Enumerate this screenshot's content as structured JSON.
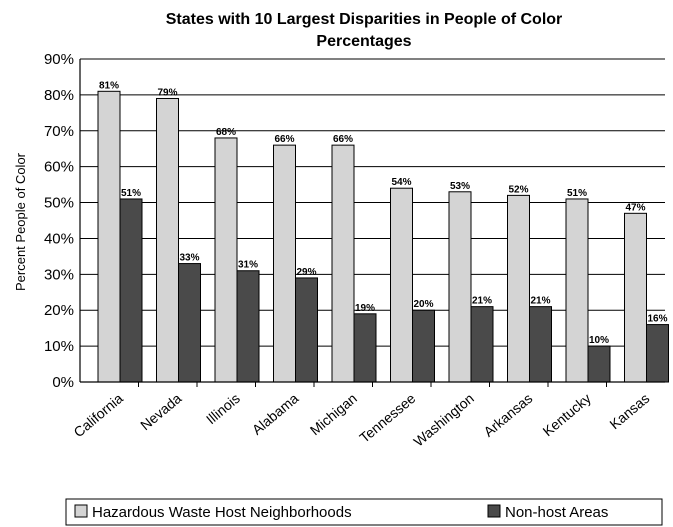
{
  "chart_data": {
    "type": "bar",
    "title_line1": "States with 10 Largest Disparities in People of Color",
    "title_line2": "Percentages",
    "ylabel": "Percent People of Color",
    "xlabel": "",
    "ylim": [
      0,
      90
    ],
    "yticks": [
      "0%",
      "10%",
      "20%",
      "30%",
      "40%",
      "50%",
      "60%",
      "70%",
      "80%",
      "90%"
    ],
    "grid": true,
    "legend_position": "bottom",
    "categories": [
      "California",
      "Nevada",
      "Illinois",
      "Alabama",
      "Michigan",
      "Tennessee",
      "Washington",
      "Arkansas",
      "Kentucky",
      "Kansas"
    ],
    "series": [
      {
        "name": "Hazardous Waste Host Neighborhoods",
        "color": "#d4d4d4",
        "values": [
          81,
          79,
          68,
          66,
          66,
          54,
          53,
          52,
          51,
          47
        ],
        "labels": [
          "81%",
          "79%",
          "68%",
          "66%",
          "66%",
          "54%",
          "53%",
          "52%",
          "51%",
          "47%"
        ]
      },
      {
        "name": "Non-host Areas",
        "color": "#4a4a4a",
        "values": [
          51,
          33,
          31,
          29,
          19,
          20,
          21,
          21,
          10,
          16
        ],
        "labels": [
          "51%",
          "33%",
          "31%",
          "29%",
          "19%",
          "20%",
          "21%",
          "21%",
          "10%",
          "16%"
        ]
      }
    ]
  }
}
